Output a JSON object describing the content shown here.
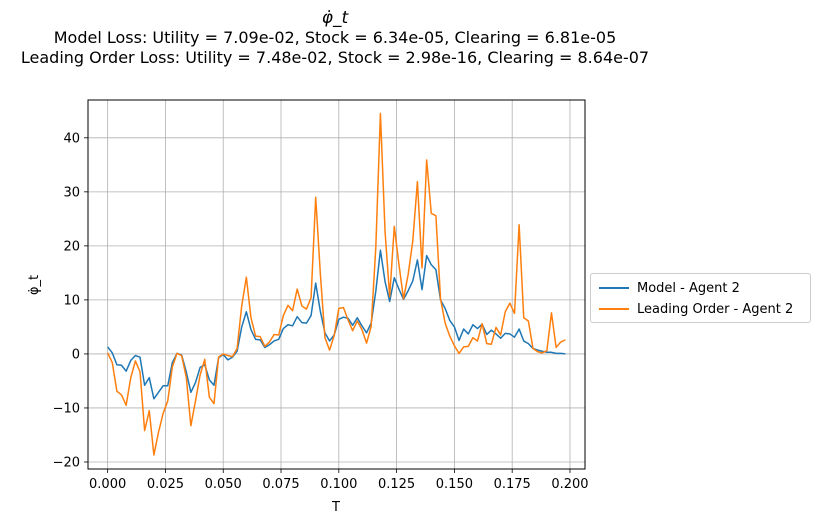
{
  "title": {
    "symbol": "φ̇_t",
    "line1": "Model Loss: Utility = 7.09e-02, Stock = 6.34e-05, Clearing = 6.81e-05",
    "line2": "Leading Order Loss: Utility = 7.48e-02, Stock = 2.98e-16, Clearing = 8.64e-07"
  },
  "chart_data": {
    "type": "line",
    "title": "φ̇_t",
    "xlabel": "T",
    "ylabel": "φ̇_t",
    "xlim": [
      -0.0085,
      0.2065
    ],
    "ylim": [
      -21.3,
      47.0
    ],
    "grid": true,
    "legend_position": "outside-right",
    "x_ticks": [
      0.0,
      0.025,
      0.05,
      0.075,
      0.1,
      0.125,
      0.15,
      0.175,
      0.2
    ],
    "x_tick_labels": [
      "0.000",
      "0.025",
      "0.050",
      "0.075",
      "0.100",
      "0.125",
      "0.150",
      "0.175",
      "0.200"
    ],
    "y_ticks": [
      -20,
      -10,
      0,
      10,
      20,
      30,
      40
    ],
    "y_tick_labels": [
      "−20",
      "−10",
      "0",
      "10",
      "20",
      "30",
      "40"
    ],
    "x": [
      0.0,
      0.002,
      0.004,
      0.006,
      0.008,
      0.01,
      0.012,
      0.014,
      0.016,
      0.018,
      0.02,
      0.022,
      0.024,
      0.026,
      0.028,
      0.03,
      0.032,
      0.034,
      0.036,
      0.038,
      0.04,
      0.042,
      0.044,
      0.046,
      0.048,
      0.05,
      0.052,
      0.054,
      0.056,
      0.058,
      0.06,
      0.062,
      0.064,
      0.066,
      0.068,
      0.07,
      0.072,
      0.074,
      0.076,
      0.078,
      0.08,
      0.082,
      0.084,
      0.086,
      0.088,
      0.09,
      0.092,
      0.094,
      0.096,
      0.098,
      0.1,
      0.102,
      0.104,
      0.106,
      0.108,
      0.11,
      0.112,
      0.114,
      0.116,
      0.118,
      0.12,
      0.122,
      0.124,
      0.126,
      0.128,
      0.13,
      0.132,
      0.134,
      0.136,
      0.138,
      0.14,
      0.142,
      0.144,
      0.146,
      0.148,
      0.15,
      0.152,
      0.154,
      0.156,
      0.158,
      0.16,
      0.162,
      0.164,
      0.166,
      0.168,
      0.17,
      0.172,
      0.174,
      0.176,
      0.178,
      0.18,
      0.182,
      0.184,
      0.186,
      0.188,
      0.19,
      0.192,
      0.194,
      0.196,
      0.198
    ],
    "series": [
      {
        "name": "Model - Agent 2",
        "color": "#1f77b4",
        "values": [
          1.3,
          0.2,
          -2.0,
          -2.1,
          -3.2,
          -1.2,
          -0.3,
          -0.6,
          -5.8,
          -4.4,
          -8.3,
          -7.1,
          -5.9,
          -5.9,
          -1.6,
          0.1,
          -0.2,
          -3.3,
          -7.1,
          -5.3,
          -2.5,
          -2.0,
          -4.8,
          -5.8,
          -0.7,
          -0.1,
          -1.1,
          -0.6,
          0.5,
          5.0,
          7.8,
          4.5,
          2.7,
          2.6,
          1.2,
          1.7,
          2.4,
          2.7,
          4.7,
          5.4,
          5.2,
          6.9,
          5.8,
          5.7,
          7.1,
          13.1,
          7.9,
          3.9,
          2.4,
          3.5,
          6.4,
          6.8,
          6.6,
          5.3,
          6.7,
          5.2,
          3.9,
          5.7,
          11.6,
          19.2,
          13.4,
          9.7,
          14.1,
          12.0,
          10.1,
          11.7,
          13.5,
          17.4,
          11.9,
          18.2,
          16.5,
          15.6,
          10.0,
          8.4,
          6.2,
          5.0,
          2.5,
          4.6,
          3.7,
          5.4,
          4.7,
          5.5,
          3.6,
          4.4,
          3.7,
          2.9,
          3.8,
          3.7,
          3.1,
          4.6,
          2.4,
          1.9,
          1.0,
          0.7,
          0.5,
          0.3,
          0.3,
          0.1,
          0.1,
          0.0
        ]
      },
      {
        "name": "Leading Order - Agent 2",
        "color": "#ff7f0e",
        "values": [
          0.2,
          -1.6,
          -6.9,
          -7.6,
          -9.5,
          -4.4,
          -1.3,
          -3.3,
          -14.2,
          -10.5,
          -18.7,
          -14.5,
          -11.0,
          -8.7,
          -2.4,
          0.1,
          -0.3,
          -4.3,
          -13.3,
          -8.7,
          -3.9,
          -1.0,
          -8.0,
          -9.2,
          -0.6,
          0.0,
          -0.3,
          -0.5,
          1.0,
          8.9,
          14.2,
          6.7,
          3.3,
          3.2,
          1.4,
          2.2,
          3.6,
          3.5,
          7.1,
          9.0,
          8.0,
          12.0,
          8.9,
          8.3,
          10.4,
          29.0,
          14.9,
          3.0,
          0.7,
          3.4,
          8.4,
          8.6,
          6.3,
          4.3,
          6.1,
          4.5,
          2.0,
          5.1,
          19.7,
          44.5,
          22.7,
          10.6,
          23.6,
          16.6,
          10.2,
          14.7,
          20.9,
          31.9,
          15.9,
          35.9,
          26.0,
          25.6,
          10.2,
          5.7,
          3.3,
          1.5,
          0.1,
          1.3,
          1.4,
          3.0,
          2.4,
          5.6,
          1.9,
          1.8,
          4.9,
          3.5,
          7.8,
          9.4,
          7.5,
          23.9,
          6.7,
          6.1,
          1.0,
          0.4,
          0.2,
          0.6,
          7.6,
          1.2,
          2.2,
          2.6
        ]
      }
    ]
  }
}
